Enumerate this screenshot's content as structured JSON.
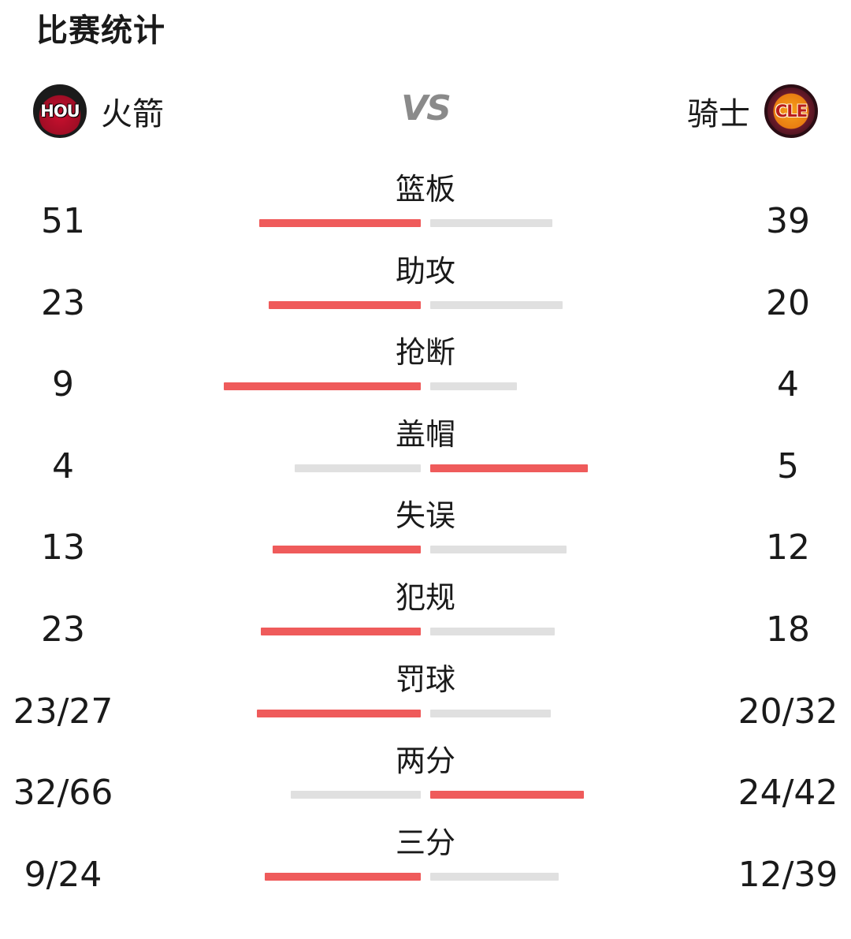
{
  "title": "比赛统计",
  "vs_label": "VS",
  "home": {
    "name": "火箭",
    "abbr": "HOU",
    "logo_icon": "rockets-logo-icon",
    "color": "#c8102e"
  },
  "away": {
    "name": "骑士",
    "abbr": "CLE",
    "logo_icon": "cavaliers-logo-icon",
    "color": "#f6a01a"
  },
  "bar_colors": {
    "leader": "#ef5b5b",
    "trailer": "#e0e0e0"
  },
  "stats": [
    {
      "label": "篮板",
      "home": "51",
      "away": "39",
      "home_bar": 0.82,
      "away_bar": 0.62,
      "leader": "home"
    },
    {
      "label": "助攻",
      "home": "23",
      "away": "20",
      "home_bar": 0.77,
      "away_bar": 0.67,
      "leader": "home"
    },
    {
      "label": "抢断",
      "home": "9",
      "away": "4",
      "home_bar": 1.0,
      "away_bar": 0.44,
      "leader": "home"
    },
    {
      "label": "盖帽",
      "home": "4",
      "away": "5",
      "home_bar": 0.64,
      "away_bar": 0.8,
      "leader": "away"
    },
    {
      "label": "失误",
      "home": "13",
      "away": "12",
      "home_bar": 0.75,
      "away_bar": 0.69,
      "leader": "home"
    },
    {
      "label": "犯规",
      "home": "23",
      "away": "18",
      "home_bar": 0.81,
      "away_bar": 0.63,
      "leader": "home"
    },
    {
      "label": "罚球",
      "home": "23/27",
      "away": "20/32",
      "home_bar": 0.83,
      "away_bar": 0.61,
      "leader": "home"
    },
    {
      "label": "两分",
      "home": "32/66",
      "away": "24/42",
      "home_bar": 0.66,
      "away_bar": 0.78,
      "leader": "away"
    },
    {
      "label": "三分",
      "home": "9/24",
      "away": "12/39",
      "home_bar": 0.79,
      "away_bar": 0.65,
      "leader": "home"
    }
  ]
}
